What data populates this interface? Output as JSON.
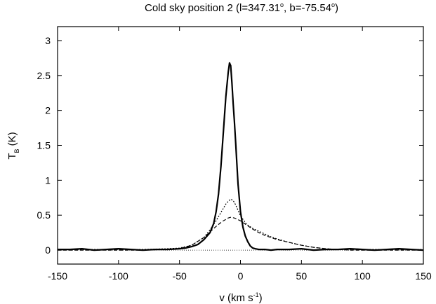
{
  "chart_data": {
    "type": "line",
    "title": "Cold sky position 2 (l=347.31°, b=-75.54°)",
    "title_parts": {
      "prefix": "Cold sky position 2 (l=347.31",
      "deg1": "o",
      "mid": ", b=-75.54",
      "deg2": "o",
      "suffix": ")"
    },
    "xlabel": "v (km s-1)",
    "xlabel_parts": {
      "main": "v (km s",
      "sup": "-1",
      "end": ")"
    },
    "ylabel": "TB (K)",
    "ylabel_parts": {
      "main": "T",
      "sub": "B",
      "end": " (K)"
    },
    "xlim": [
      -150,
      150
    ],
    "ylim": [
      -0.2,
      3.2
    ],
    "x_ticks": [
      -150,
      -100,
      -50,
      0,
      50,
      100,
      150
    ],
    "x_tick_labels": [
      "-150",
      "-100",
      "-50",
      "0",
      "50",
      "100",
      "150"
    ],
    "y_ticks": [
      0,
      0.5,
      1,
      1.5,
      2,
      2.5,
      3
    ],
    "y_tick_labels": [
      "0",
      "0.5",
      "1",
      "1.5",
      "2",
      "2.5",
      "3"
    ],
    "grid": false,
    "legend": "none",
    "series": [
      {
        "style": "solid-thick",
        "x": [
          -150,
          -140,
          -130,
          -120,
          -110,
          -100,
          -90,
          -80,
          -70,
          -60,
          -50,
          -45,
          -40,
          -35,
          -30,
          -25,
          -22,
          -20,
          -18,
          -16,
          -14,
          -12,
          -10,
          -9,
          -8,
          -7,
          -6,
          -5,
          -4,
          -3,
          -2,
          0,
          2,
          4,
          6,
          8,
          10,
          12,
          15,
          20,
          25,
          30,
          40,
          50,
          60,
          70,
          80,
          90,
          100,
          110,
          120,
          130,
          140,
          150
        ],
        "y": [
          0.01,
          0.01,
          0.02,
          0.0,
          0.01,
          0.02,
          0.01,
          0.0,
          0.01,
          0.01,
          0.02,
          0.03,
          0.05,
          0.08,
          0.15,
          0.25,
          0.38,
          0.55,
          0.8,
          1.2,
          1.7,
          2.2,
          2.55,
          2.68,
          2.64,
          2.4,
          2.1,
          1.85,
          1.55,
          1.25,
          0.95,
          0.55,
          0.33,
          0.2,
          0.12,
          0.06,
          0.03,
          0.02,
          0.01,
          0.01,
          0.0,
          0.01,
          0.01,
          0.02,
          0.0,
          0.01,
          0.01,
          0.02,
          0.01,
          0.0,
          0.01,
          0.02,
          0.01,
          0.0
        ]
      },
      {
        "style": "dotted",
        "x": [
          -150,
          -125,
          -100,
          -80,
          -60,
          -50,
          -40,
          -30,
          -25,
          -20,
          -15,
          -12,
          -10,
          -8,
          -6,
          -4,
          -2,
          0,
          5,
          10,
          15,
          20,
          25,
          30,
          40,
          50,
          60,
          70,
          80,
          90,
          100,
          125,
          150
        ],
        "y": [
          0.01,
          0.01,
          0.01,
          0.01,
          0.02,
          0.03,
          0.07,
          0.18,
          0.29,
          0.42,
          0.57,
          0.66,
          0.7,
          0.73,
          0.71,
          0.65,
          0.57,
          0.49,
          0.37,
          0.31,
          0.27,
          0.23,
          0.19,
          0.16,
          0.11,
          0.07,
          0.04,
          0.02,
          0.01,
          0.01,
          0.01,
          0.01,
          0.01
        ]
      },
      {
        "style": "dashed",
        "x": [
          -150,
          -125,
          -100,
          -80,
          -60,
          -50,
          -40,
          -30,
          -25,
          -20,
          -15,
          -10,
          -8,
          -5,
          0,
          5,
          10,
          15,
          20,
          25,
          30,
          40,
          50,
          60,
          70,
          80,
          90,
          100,
          125,
          150
        ],
        "y": [
          0.0,
          0.0,
          0.0,
          0.0,
          0.01,
          0.02,
          0.07,
          0.18,
          0.26,
          0.34,
          0.41,
          0.46,
          0.47,
          0.46,
          0.42,
          0.36,
          0.3,
          0.25,
          0.21,
          0.18,
          0.15,
          0.11,
          0.07,
          0.04,
          0.02,
          0.01,
          0.0,
          0.0,
          0.0,
          0.0
        ]
      },
      {
        "style": "dotted-thin",
        "x": [
          -150,
          150
        ],
        "y": [
          0,
          0
        ]
      }
    ]
  }
}
